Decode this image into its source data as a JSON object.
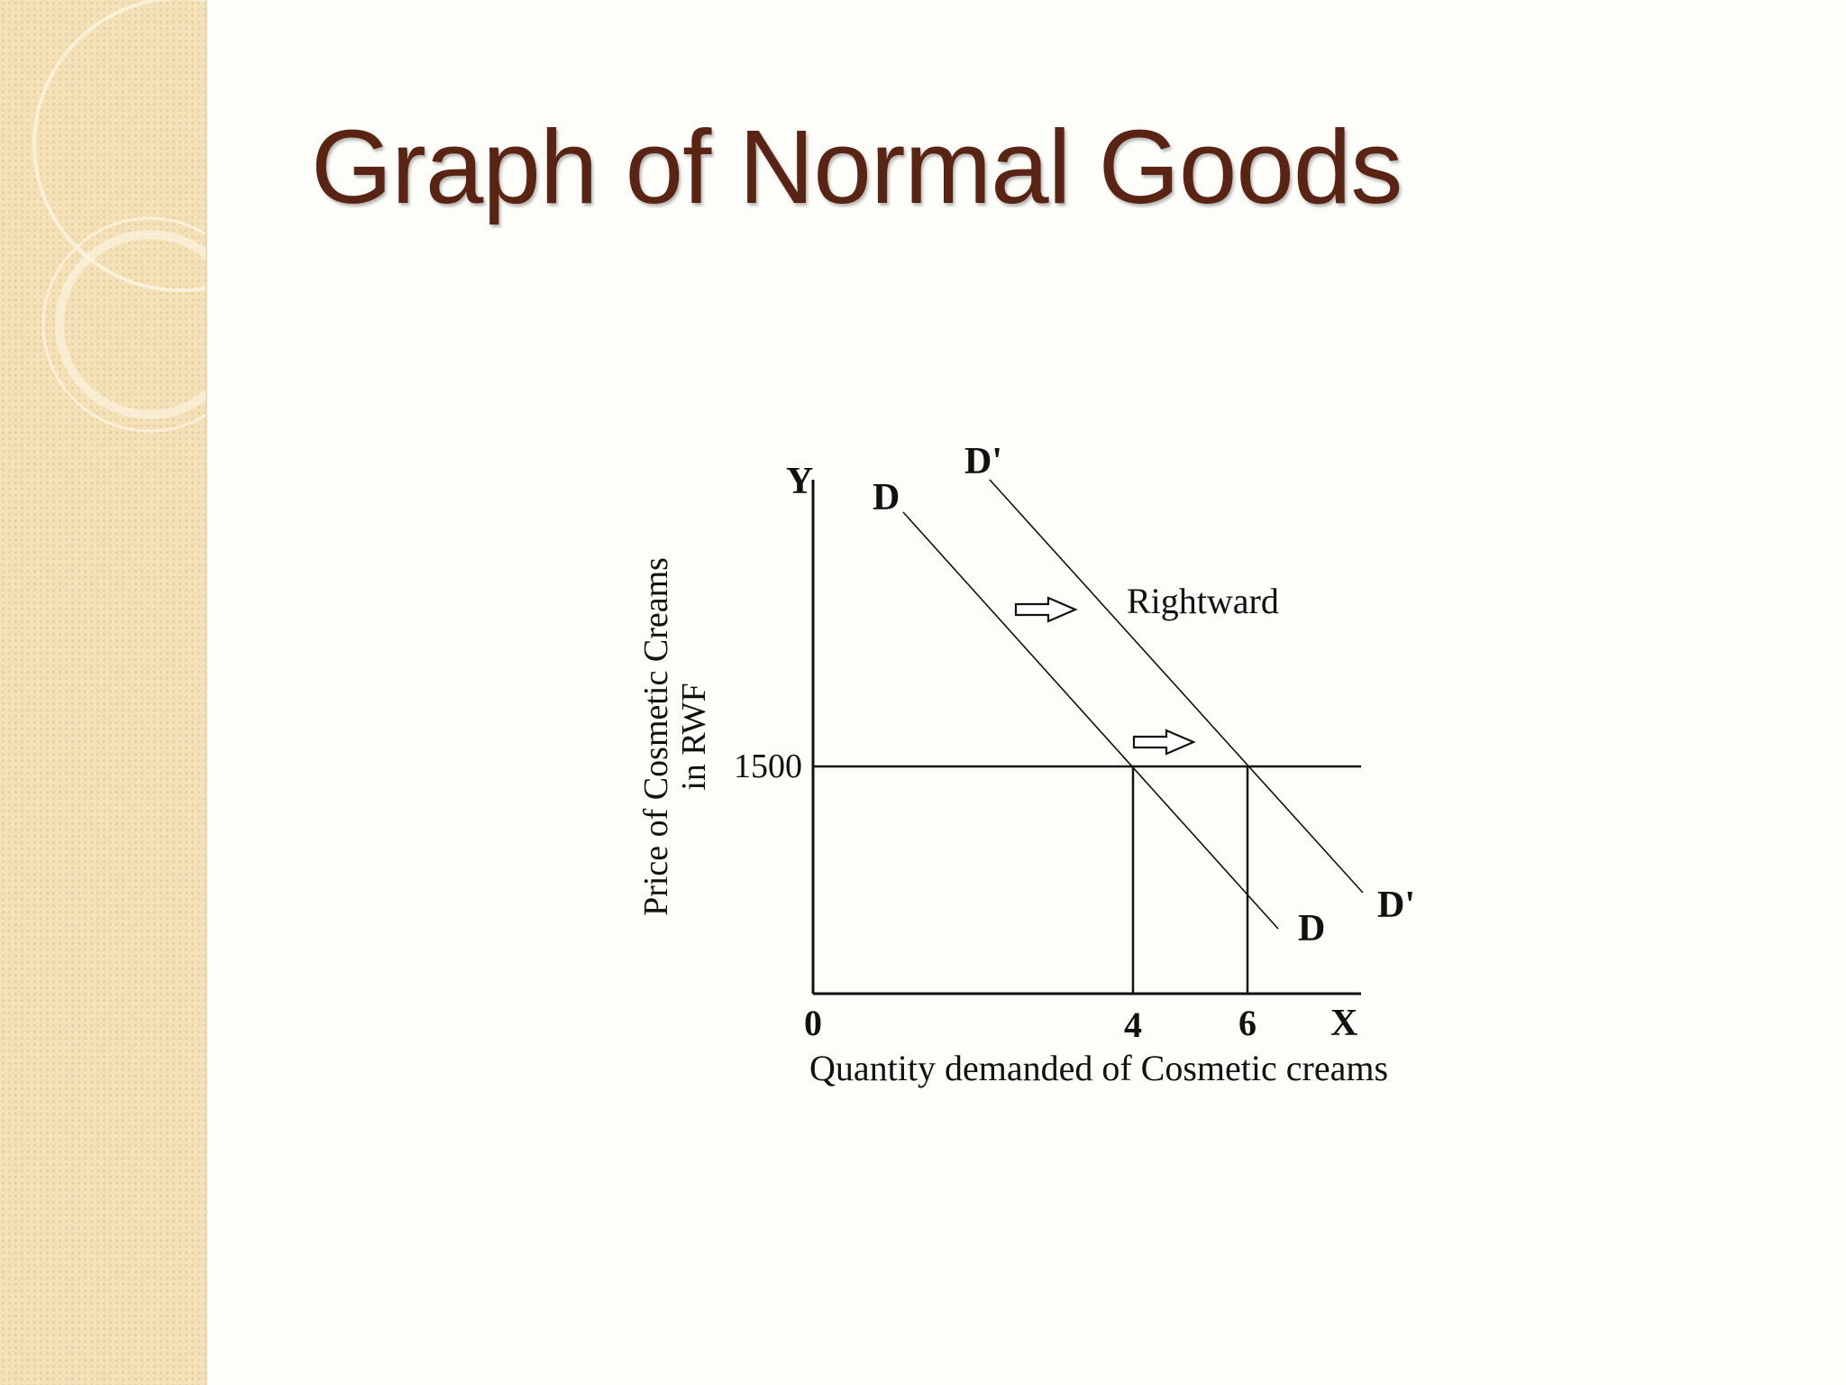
{
  "slide": {
    "title": "Graph of Normal Goods"
  },
  "chart_data": {
    "type": "line",
    "y_axis_letter": "Y",
    "x_axis_letter": "X",
    "origin_label": "0",
    "ylabel_line1": "Price of Cosmetic Creams",
    "ylabel_line2": "in RWF",
    "xlabel": "Quantity demanded of Cosmetic creams",
    "price_level": 1500,
    "price_label": "1500",
    "x_ticks": [
      "4",
      "6"
    ],
    "annotation": "Rightward",
    "series": [
      {
        "name": "D",
        "top_label": "D",
        "bottom_label": "D",
        "quantity_at_price": 4
      },
      {
        "name": "D'",
        "top_label": "D'",
        "bottom_label": "D'",
        "quantity_at_price": 6
      }
    ],
    "colors": {
      "title": "#5a2414",
      "lines": "#111111",
      "sidebar": "#f4e1b7"
    }
  }
}
